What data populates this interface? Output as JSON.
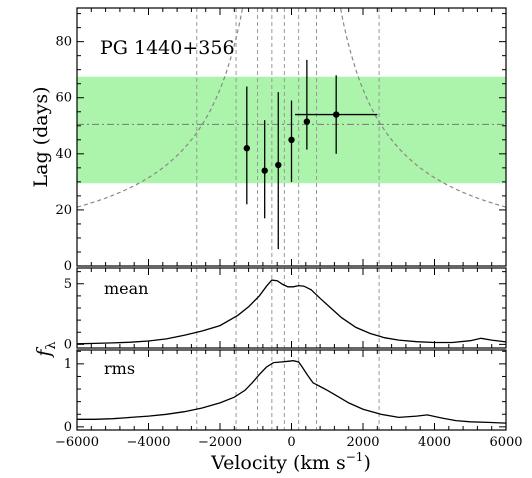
{
  "chart_data": {
    "type": "scatter",
    "object_label": "PG 1440+356",
    "x_range": [
      -6000,
      6000
    ],
    "x_ticks": [
      -6000,
      -4000,
      -2000,
      0,
      2000,
      4000,
      6000
    ],
    "x_tick_labels": [
      "−6000",
      "−4000",
      "−2000",
      "0",
      "2000",
      "4000",
      "6000"
    ],
    "xlabel_main": "Velocity (km s",
    "xlabel_sup": "−1",
    "xlabel_end": ")",
    "panels": {
      "lag": {
        "ylabel": "Lag (days)",
        "y_range": [
          0,
          92
        ],
        "y_ticks": [
          0,
          20,
          40,
          60,
          80
        ],
        "y_tick_labels": [
          "0",
          "20",
          "40",
          "60",
          "80"
        ],
        "band": {
          "y_low": 29.5,
          "y_high": 67.5,
          "color": "#90f090"
        },
        "mean_lag": 50.5,
        "envelope_coeff": 126000,
        "bin_edges": [
          -2650,
          -1550,
          -950,
          -550,
          -200,
          200,
          700,
          2450
        ],
        "points": [
          {
            "x": -1250,
            "y": 42,
            "xerr": 0,
            "yerr_low": 20,
            "yerr_high": 22
          },
          {
            "x": -750,
            "y": 34,
            "xerr": 0,
            "yerr_low": 17,
            "yerr_high": 18
          },
          {
            "x": -370,
            "y": 36,
            "xerr": 0,
            "yerr_low": 30,
            "yerr_high": 26
          },
          {
            "x": 0,
            "y": 45,
            "xerr": 0,
            "yerr_low": 15,
            "yerr_high": 14
          },
          {
            "x": 430,
            "y": 51.5,
            "xerr": 0,
            "yerr_low": 10,
            "yerr_high": 22
          },
          {
            "x": 1250,
            "y": 54,
            "xerr": 1150,
            "yerr_low": 14,
            "yerr_high": 14
          }
        ]
      },
      "mean": {
        "label": "mean",
        "y_range": [
          -0.3,
          6.3
        ],
        "y_ticks": [
          0,
          5
        ],
        "y_tick_labels": [
          "0",
          "5"
        ],
        "profile": [
          [
            -6000,
            0.05
          ],
          [
            -5500,
            0.08
          ],
          [
            -5000,
            0.12
          ],
          [
            -4500,
            0.18
          ],
          [
            -4000,
            0.28
          ],
          [
            -3500,
            0.45
          ],
          [
            -3000,
            0.75
          ],
          [
            -2500,
            1.1
          ],
          [
            -2000,
            1.55
          ],
          [
            -1500,
            2.4
          ],
          [
            -1200,
            3.1
          ],
          [
            -900,
            4.0
          ],
          [
            -700,
            4.8
          ],
          [
            -550,
            5.3
          ],
          [
            -400,
            5.25
          ],
          [
            -250,
            4.95
          ],
          [
            -100,
            4.75
          ],
          [
            50,
            4.75
          ],
          [
            200,
            4.85
          ],
          [
            350,
            4.8
          ],
          [
            550,
            4.5
          ],
          [
            800,
            3.8
          ],
          [
            1100,
            3.0
          ],
          [
            1400,
            2.2
          ],
          [
            1800,
            1.4
          ],
          [
            2200,
            0.9
          ],
          [
            2600,
            0.55
          ],
          [
            3000,
            0.35
          ],
          [
            3500,
            0.22
          ],
          [
            4000,
            0.15
          ],
          [
            4500,
            0.15
          ],
          [
            5000,
            0.3
          ],
          [
            5300,
            0.5
          ],
          [
            5600,
            0.35
          ],
          [
            6000,
            0.2
          ]
        ]
      },
      "rms": {
        "label": "rms",
        "y_range": [
          -0.05,
          1.22
        ],
        "y_ticks": [
          0,
          1
        ],
        "y_tick_labels": [
          "0",
          "1"
        ],
        "profile": [
          [
            -6000,
            0.12
          ],
          [
            -5500,
            0.12
          ],
          [
            -5000,
            0.13
          ],
          [
            -4500,
            0.15
          ],
          [
            -4000,
            0.17
          ],
          [
            -3500,
            0.2
          ],
          [
            -3000,
            0.24
          ],
          [
            -2500,
            0.3
          ],
          [
            -2000,
            0.38
          ],
          [
            -1600,
            0.47
          ],
          [
            -1300,
            0.58
          ],
          [
            -1100,
            0.7
          ],
          [
            -900,
            0.83
          ],
          [
            -700,
            0.95
          ],
          [
            -500,
            1.02
          ],
          [
            -300,
            1.03
          ],
          [
            -100,
            1.04
          ],
          [
            50,
            1.05
          ],
          [
            200,
            1.03
          ],
          [
            300,
            0.95
          ],
          [
            450,
            0.82
          ],
          [
            600,
            0.7
          ],
          [
            800,
            0.64
          ],
          [
            1000,
            0.58
          ],
          [
            1300,
            0.48
          ],
          [
            1600,
            0.38
          ],
          [
            2000,
            0.28
          ],
          [
            2500,
            0.2
          ],
          [
            3000,
            0.15
          ],
          [
            3500,
            0.17
          ],
          [
            3800,
            0.19
          ],
          [
            4200,
            0.14
          ],
          [
            4600,
            0.1
          ],
          [
            5000,
            0.08
          ],
          [
            5500,
            0.07
          ],
          [
            6000,
            0.06
          ]
        ]
      }
    },
    "f_label_main": "f",
    "f_label_sub": "λ",
    "grid": false,
    "colors": {
      "band": "#90f090",
      "lines": "#000000",
      "guides": "#999999"
    }
  }
}
